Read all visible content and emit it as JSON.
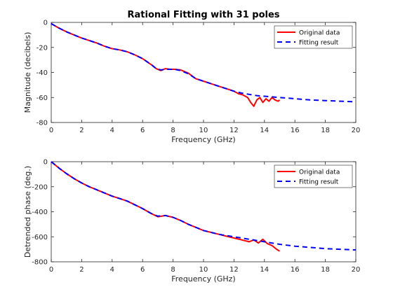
{
  "chart_data": [
    {
      "type": "line",
      "title": "Rational Fitting with 31 poles",
      "xlabel": "Frequency (GHz)",
      "ylabel": "Magnitude (decibels)",
      "xlim": [
        0,
        20
      ],
      "ylim": [
        -80,
        0
      ],
      "xticks": [
        0,
        2,
        4,
        6,
        8,
        10,
        12,
        14,
        16,
        18,
        20
      ],
      "yticks": [
        -80,
        -60,
        -40,
        -20,
        0
      ],
      "grid": false,
      "legend_position": "top-right",
      "series": [
        {
          "name": "Original data",
          "color": "#ff0000",
          "style": "solid",
          "x": [
            0,
            0.5,
            1,
            1.5,
            2,
            2.5,
            3,
            3.5,
            4,
            4.5,
            5,
            5.5,
            6,
            6.3,
            6.6,
            6.9,
            7.2,
            7.5,
            7.8,
            8.1,
            8.5,
            9,
            9.5,
            10,
            10.5,
            11,
            11.5,
            12,
            12.3,
            12.6,
            12.9,
            13.1,
            13.3,
            13.5,
            13.7,
            13.9,
            14.1,
            14.3,
            14.5,
            14.7,
            14.9,
            15
          ],
          "y": [
            -1,
            -4.5,
            -7.5,
            -10,
            -12.5,
            -14.5,
            -16.5,
            -19,
            -21,
            -22,
            -23.5,
            -26,
            -29,
            -31.5,
            -34,
            -37,
            -38.5,
            -37,
            -37.5,
            -37.5,
            -38,
            -40.5,
            -45,
            -47,
            -49,
            -51,
            -53,
            -55,
            -57,
            -58,
            -60,
            -64,
            -67,
            -62,
            -60,
            -64,
            -61,
            -63,
            -60,
            -62,
            -63,
            -62
          ]
        },
        {
          "name": "Fitting result",
          "color": "#0000ff",
          "style": "dashed",
          "x": [
            0,
            0.5,
            1,
            1.5,
            2,
            2.5,
            3,
            3.5,
            4,
            4.5,
            5,
            5.5,
            6,
            6.3,
            6.6,
            6.9,
            7.2,
            7.5,
            7.8,
            8.1,
            8.5,
            9,
            9.5,
            10,
            10.5,
            11,
            11.5,
            12,
            12.5,
            13,
            13.5,
            14,
            14.5,
            15,
            16,
            17,
            18,
            19,
            20
          ],
          "y": [
            -1,
            -4.5,
            -7.5,
            -10,
            -12.5,
            -14.5,
            -16.5,
            -19,
            -21,
            -22,
            -23.5,
            -26,
            -29,
            -31.5,
            -34,
            -37,
            -38,
            -37.5,
            -37.5,
            -37.5,
            -38.5,
            -41,
            -45,
            -47,
            -49,
            -51,
            -53,
            -55,
            -56.5,
            -57.5,
            -58.5,
            -59,
            -59.5,
            -60,
            -61,
            -62,
            -62.5,
            -63,
            -63.5
          ]
        }
      ]
    },
    {
      "type": "line",
      "title": "",
      "xlabel": "Frequency (GHz)",
      "ylabel": "Detrended phase (deg.)",
      "xlim": [
        0,
        20
      ],
      "ylim": [
        -800,
        0
      ],
      "xticks": [
        0,
        2,
        4,
        6,
        8,
        10,
        12,
        14,
        16,
        18,
        20
      ],
      "yticks": [
        -800,
        -600,
        -400,
        -200,
        0
      ],
      "grid": false,
      "legend_position": "top-right",
      "series": [
        {
          "name": "Original data",
          "color": "#ff0000",
          "style": "solid",
          "x": [
            0,
            0.5,
            1,
            1.5,
            2,
            2.5,
            3,
            3.5,
            4,
            4.5,
            5,
            5.5,
            6,
            6.5,
            7,
            7.5,
            8,
            8.5,
            9,
            9.5,
            10,
            10.5,
            11,
            11.5,
            12,
            12.5,
            13,
            13.3,
            13.6,
            13.9,
            14.2,
            14.5,
            14.8,
            15
          ],
          "y": [
            0,
            -50,
            -95,
            -135,
            -170,
            -200,
            -225,
            -250,
            -275,
            -295,
            -315,
            -345,
            -375,
            -410,
            -440,
            -430,
            -445,
            -470,
            -500,
            -525,
            -550,
            -565,
            -580,
            -595,
            -610,
            -625,
            -640,
            -625,
            -650,
            -620,
            -655,
            -670,
            -700,
            -715
          ]
        },
        {
          "name": "Fitting result",
          "color": "#0000ff",
          "style": "dashed",
          "x": [
            0,
            0.5,
            1,
            1.5,
            2,
            2.5,
            3,
            3.5,
            4,
            4.5,
            5,
            5.5,
            6,
            6.5,
            7,
            7.5,
            8,
            8.5,
            9,
            9.5,
            10,
            10.5,
            11,
            11.5,
            12,
            12.5,
            13,
            13.5,
            14,
            14.5,
            15,
            16,
            17,
            18,
            19,
            20
          ],
          "y": [
            0,
            -50,
            -95,
            -135,
            -170,
            -200,
            -225,
            -250,
            -275,
            -295,
            -315,
            -345,
            -375,
            -410,
            -435,
            -430,
            -445,
            -470,
            -500,
            -525,
            -550,
            -565,
            -580,
            -590,
            -600,
            -610,
            -620,
            -630,
            -640,
            -650,
            -660,
            -675,
            -685,
            -695,
            -700,
            -705
          ]
        }
      ]
    }
  ]
}
